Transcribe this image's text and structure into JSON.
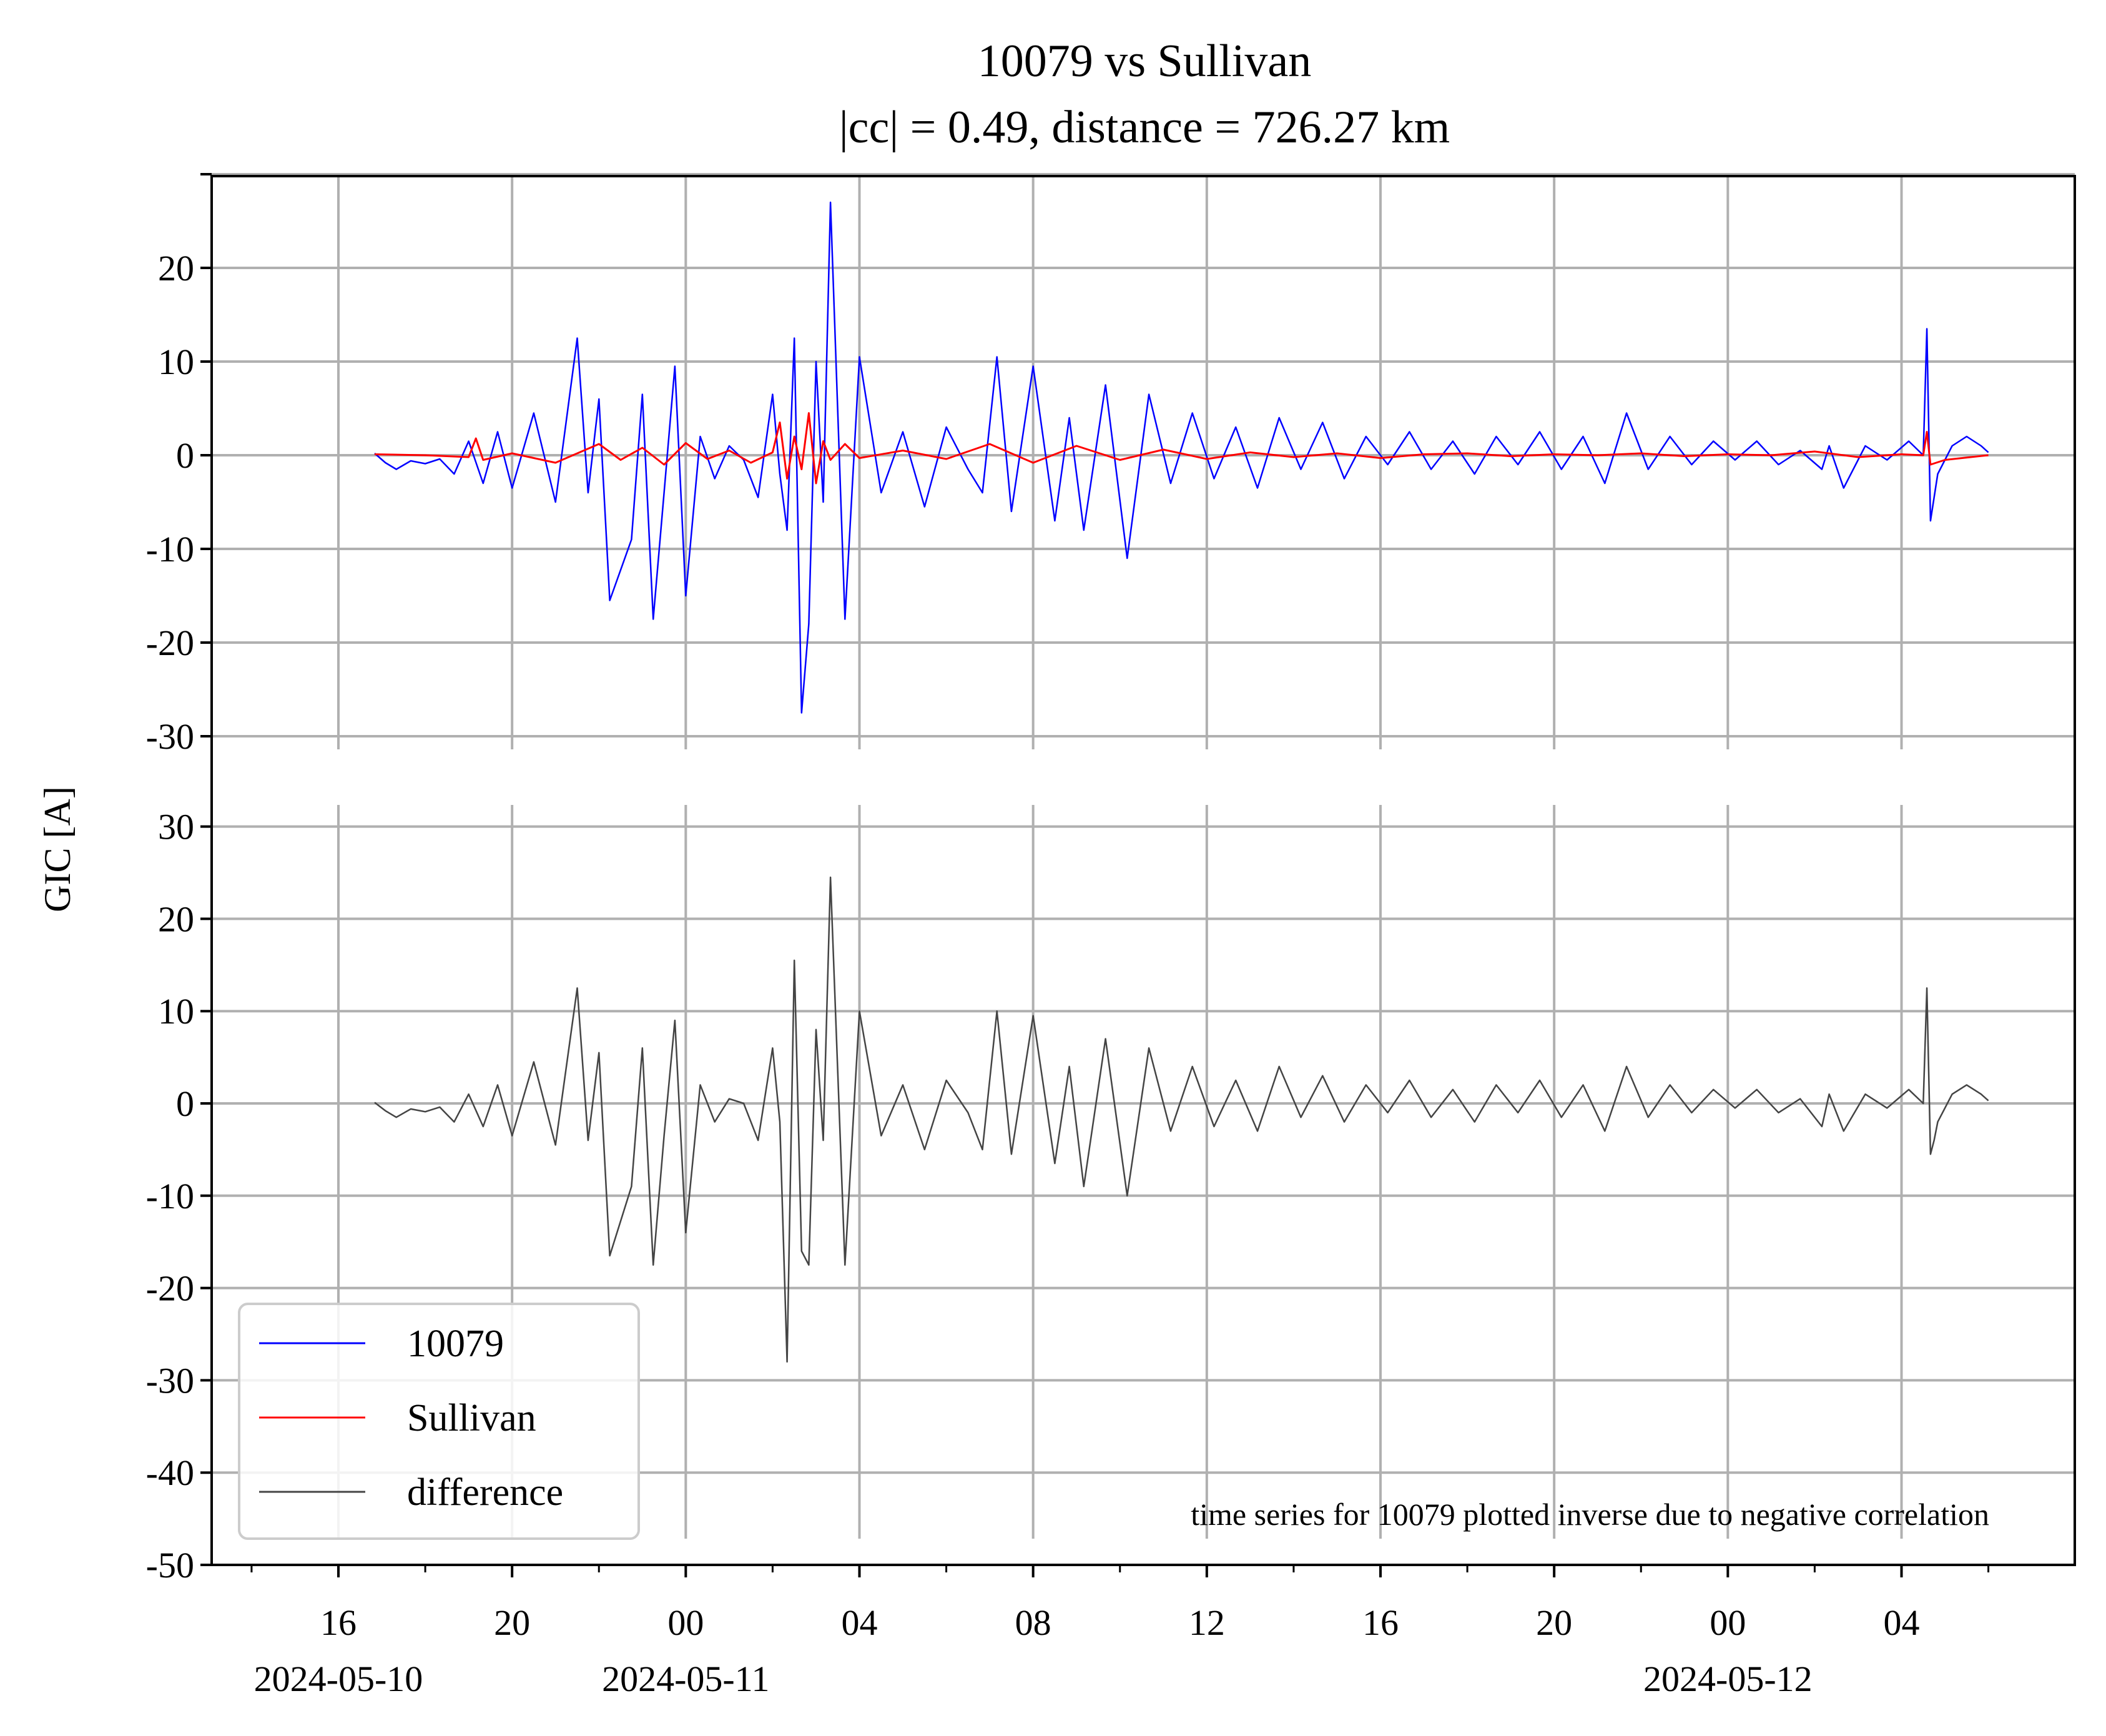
{
  "chart_data": {
    "type": "line",
    "title": "10079 vs Sullivan",
    "subtitle": "|cc| = 0.49, distance = 726.27 km",
    "ylabel": "GIC [A]",
    "xlabel": "",
    "x_range": [
      "2024-05-10 14:30",
      "2024-05-12 07:30"
    ],
    "x_ticks": [
      {
        "time": "2024-05-10 16:00",
        "label": "16",
        "date_label": "2024-05-10"
      },
      {
        "time": "2024-05-10 20:00",
        "label": "20",
        "date_label": ""
      },
      {
        "time": "2024-05-11 00:00",
        "label": "00",
        "date_label": "2024-05-11"
      },
      {
        "time": "2024-05-11 04:00",
        "label": "04",
        "date_label": ""
      },
      {
        "time": "2024-05-11 08:00",
        "label": "08",
        "date_label": ""
      },
      {
        "time": "2024-05-11 12:00",
        "label": "12",
        "date_label": ""
      },
      {
        "time": "2024-05-11 16:00",
        "label": "16",
        "date_label": ""
      },
      {
        "time": "2024-05-11 20:00",
        "label": "20",
        "date_label": ""
      },
      {
        "time": "2024-05-12 00:00",
        "label": "00",
        "date_label": "2024-05-12"
      },
      {
        "time": "2024-05-12 04:00",
        "label": "04",
        "date_label": ""
      }
    ],
    "grid": true,
    "panels": [
      {
        "name": "top",
        "ylim": [
          -30,
          30
        ],
        "yticks": [
          30,
          20,
          10,
          0,
          -10,
          -20,
          -30
        ],
        "ytick_labels": [
          "",
          "20",
          "10",
          "0",
          "-10",
          "-20",
          "-30"
        ],
        "series": [
          {
            "name": "10079",
            "color": "#0000ff",
            "x": [
              "2024-05-10 16:50",
              "2024-05-10 17:05",
              "2024-05-10 17:20",
              "2024-05-10 17:40",
              "2024-05-10 18:00",
              "2024-05-10 18:20",
              "2024-05-10 18:40",
              "2024-05-10 19:00",
              "2024-05-10 19:20",
              "2024-05-10 19:40",
              "2024-05-10 20:00",
              "2024-05-10 20:30",
              "2024-05-10 21:00",
              "2024-05-10 21:30",
              "2024-05-10 21:45",
              "2024-05-10 22:00",
              "2024-05-10 22:15",
              "2024-05-10 22:45",
              "2024-05-10 23:00",
              "2024-05-10 23:15",
              "2024-05-10 23:30",
              "2024-05-10 23:45",
              "2024-05-11 00:00",
              "2024-05-11 00:20",
              "2024-05-11 00:40",
              "2024-05-11 01:00",
              "2024-05-11 01:20",
              "2024-05-11 01:40",
              "2024-05-11 02:00",
              "2024-05-11 02:10",
              "2024-05-11 02:20",
              "2024-05-11 02:30",
              "2024-05-11 02:40",
              "2024-05-11 02:50",
              "2024-05-11 03:00",
              "2024-05-11 03:10",
              "2024-05-11 03:20",
              "2024-05-11 03:40",
              "2024-05-11 04:00",
              "2024-05-11 04:30",
              "2024-05-11 05:00",
              "2024-05-11 05:30",
              "2024-05-11 06:00",
              "2024-05-11 06:30",
              "2024-05-11 06:50",
              "2024-05-11 07:10",
              "2024-05-11 07:30",
              "2024-05-11 08:00",
              "2024-05-11 08:30",
              "2024-05-11 08:50",
              "2024-05-11 09:10",
              "2024-05-11 09:40",
              "2024-05-11 10:10",
              "2024-05-11 10:40",
              "2024-05-11 11:10",
              "2024-05-11 11:40",
              "2024-05-11 12:10",
              "2024-05-11 12:40",
              "2024-05-11 13:10",
              "2024-05-11 13:40",
              "2024-05-11 14:10",
              "2024-05-11 14:40",
              "2024-05-11 15:10",
              "2024-05-11 15:40",
              "2024-05-11 16:10",
              "2024-05-11 16:40",
              "2024-05-11 17:10",
              "2024-05-11 17:40",
              "2024-05-11 18:10",
              "2024-05-11 18:40",
              "2024-05-11 19:10",
              "2024-05-11 19:40",
              "2024-05-11 20:10",
              "2024-05-11 20:40",
              "2024-05-11 21:10",
              "2024-05-11 21:40",
              "2024-05-11 22:10",
              "2024-05-11 22:40",
              "2024-05-11 23:10",
              "2024-05-11 23:40",
              "2024-05-12 00:10",
              "2024-05-12 00:40",
              "2024-05-12 01:10",
              "2024-05-12 01:40",
              "2024-05-12 02:10",
              "2024-05-12 02:20",
              "2024-05-12 02:40",
              "2024-05-12 03:10",
              "2024-05-12 03:40",
              "2024-05-12 04:10",
              "2024-05-12 04:30",
              "2024-05-12 04:35",
              "2024-05-12 04:40",
              "2024-05-12 04:45",
              "2024-05-12 04:50",
              "2024-05-12 05:10",
              "2024-05-12 05:30",
              "2024-05-12 05:50",
              "2024-05-12 06:00"
            ],
            "values": [
              0.2,
              -0.8,
              -1.5,
              -0.6,
              -0.9,
              -0.4,
              -2.0,
              1.5,
              -3.0,
              2.5,
              -3.5,
              4.5,
              -5.0,
              12.5,
              -4.0,
              6.0,
              -15.5,
              -9.0,
              6.5,
              -17.5,
              -4.0,
              9.5,
              -15.0,
              2.0,
              -2.5,
              1.0,
              -0.5,
              -4.5,
              6.5,
              -2.0,
              -8.0,
              12.5,
              -27.5,
              -18.0,
              10.0,
              -5.0,
              27.0,
              -17.5,
              10.5,
              -4.0,
              2.5,
              -5.5,
              3.0,
              -1.5,
              -4.0,
              10.5,
              -6.0,
              9.5,
              -7.0,
              4.0,
              -8.0,
              7.5,
              -11.0,
              6.5,
              -3.0,
              4.5,
              -2.5,
              3.0,
              -3.5,
              4.0,
              -1.5,
              3.5,
              -2.5,
              2.0,
              -1.0,
              2.5,
              -1.5,
              1.5,
              -2.0,
              2.0,
              -1.0,
              2.5,
              -1.5,
              2.0,
              -3.0,
              4.5,
              -1.5,
              2.0,
              -1.0,
              1.5,
              -0.5,
              1.5,
              -1.0,
              0.5,
              -1.5,
              1.0,
              -3.5,
              1.0,
              -0.5,
              1.5,
              0.0,
              13.5,
              -7.0,
              -4.5,
              -2.0,
              1.0,
              2.0,
              1.0,
              0.3
            ]
          },
          {
            "name": "Sullivan",
            "color": "#ff0000",
            "x": [
              "2024-05-10 16:50",
              "2024-05-10 18:00",
              "2024-05-10 19:00",
              "2024-05-10 19:10",
              "2024-05-10 19:20",
              "2024-05-10 20:00",
              "2024-05-10 21:00",
              "2024-05-10 22:00",
              "2024-05-10 22:30",
              "2024-05-10 23:00",
              "2024-05-10 23:30",
              "2024-05-11 00:00",
              "2024-05-11 00:30",
              "2024-05-11 01:00",
              "2024-05-11 01:30",
              "2024-05-11 02:00",
              "2024-05-11 02:10",
              "2024-05-11 02:20",
              "2024-05-11 02:30",
              "2024-05-11 02:40",
              "2024-05-11 02:50",
              "2024-05-11 03:00",
              "2024-05-11 03:10",
              "2024-05-11 03:20",
              "2024-05-11 03:40",
              "2024-05-11 04:00",
              "2024-05-11 05:00",
              "2024-05-11 06:00",
              "2024-05-11 07:00",
              "2024-05-11 08:00",
              "2024-05-11 09:00",
              "2024-05-11 10:00",
              "2024-05-11 11:00",
              "2024-05-11 12:00",
              "2024-05-11 13:00",
              "2024-05-11 14:00",
              "2024-05-11 15:00",
              "2024-05-11 16:00",
              "2024-05-11 17:00",
              "2024-05-11 18:00",
              "2024-05-11 19:00",
              "2024-05-11 20:00",
              "2024-05-11 21:00",
              "2024-05-11 22:00",
              "2024-05-11 23:00",
              "2024-05-12 00:00",
              "2024-05-12 01:00",
              "2024-05-12 02:00",
              "2024-05-12 03:00",
              "2024-05-12 04:00",
              "2024-05-12 04:30",
              "2024-05-12 04:35",
              "2024-05-12 04:40",
              "2024-05-12 05:00",
              "2024-05-12 06:00"
            ],
            "values": [
              0.1,
              0.0,
              -0.2,
              1.8,
              -0.5,
              0.2,
              -0.8,
              1.2,
              -0.5,
              0.8,
              -1.0,
              1.3,
              -0.4,
              0.5,
              -0.8,
              0.3,
              3.5,
              -2.5,
              2.0,
              -1.5,
              4.5,
              -3.0,
              1.5,
              -0.5,
              1.2,
              -0.3,
              0.5,
              -0.4,
              1.2,
              -0.8,
              1.0,
              -0.5,
              0.6,
              -0.4,
              0.3,
              -0.2,
              0.2,
              -0.3,
              0.1,
              0.2,
              -0.1,
              0.1,
              0.0,
              0.2,
              -0.1,
              0.1,
              0.0,
              0.4,
              -0.2,
              0.1,
              0.0,
              2.5,
              -1.0,
              -0.5,
              0.0
            ]
          }
        ]
      },
      {
        "name": "bottom",
        "ylim": [
          -50,
          30
        ],
        "yticks": [
          30,
          20,
          10,
          0,
          -10,
          -20,
          -30,
          -40,
          -50
        ],
        "ytick_labels": [
          "30",
          "20",
          "10",
          "0",
          "-10",
          "-20",
          "-30",
          "-40",
          "-50"
        ],
        "series": [
          {
            "name": "difference",
            "color": "#444444",
            "x": [
              "2024-05-10 16:50",
              "2024-05-10 17:05",
              "2024-05-10 17:20",
              "2024-05-10 17:40",
              "2024-05-10 18:00",
              "2024-05-10 18:20",
              "2024-05-10 18:40",
              "2024-05-10 19:00",
              "2024-05-10 19:20",
              "2024-05-10 19:40",
              "2024-05-10 20:00",
              "2024-05-10 20:30",
              "2024-05-10 21:00",
              "2024-05-10 21:30",
              "2024-05-10 21:45",
              "2024-05-10 22:00",
              "2024-05-10 22:15",
              "2024-05-10 22:45",
              "2024-05-10 23:00",
              "2024-05-10 23:15",
              "2024-05-10 23:30",
              "2024-05-10 23:45",
              "2024-05-11 00:00",
              "2024-05-11 00:20",
              "2024-05-11 00:40",
              "2024-05-11 01:00",
              "2024-05-11 01:20",
              "2024-05-11 01:40",
              "2024-05-11 02:00",
              "2024-05-11 02:10",
              "2024-05-11 02:20",
              "2024-05-11 02:30",
              "2024-05-11 02:40",
              "2024-05-11 02:50",
              "2024-05-11 03:00",
              "2024-05-11 03:10",
              "2024-05-11 03:20",
              "2024-05-11 03:40",
              "2024-05-11 04:00",
              "2024-05-11 04:30",
              "2024-05-11 05:00",
              "2024-05-11 05:30",
              "2024-05-11 06:00",
              "2024-05-11 06:30",
              "2024-05-11 06:50",
              "2024-05-11 07:10",
              "2024-05-11 07:30",
              "2024-05-11 08:00",
              "2024-05-11 08:30",
              "2024-05-11 08:50",
              "2024-05-11 09:10",
              "2024-05-11 09:40",
              "2024-05-11 10:10",
              "2024-05-11 10:40",
              "2024-05-11 11:10",
              "2024-05-11 11:40",
              "2024-05-11 12:10",
              "2024-05-11 12:40",
              "2024-05-11 13:10",
              "2024-05-11 13:40",
              "2024-05-11 14:10",
              "2024-05-11 14:40",
              "2024-05-11 15:10",
              "2024-05-11 15:40",
              "2024-05-11 16:10",
              "2024-05-11 16:40",
              "2024-05-11 17:10",
              "2024-05-11 17:40",
              "2024-05-11 18:10",
              "2024-05-11 18:40",
              "2024-05-11 19:10",
              "2024-05-11 19:40",
              "2024-05-11 20:10",
              "2024-05-11 20:40",
              "2024-05-11 21:10",
              "2024-05-11 21:40",
              "2024-05-11 22:10",
              "2024-05-11 22:40",
              "2024-05-11 23:10",
              "2024-05-11 23:40",
              "2024-05-12 00:10",
              "2024-05-12 00:40",
              "2024-05-12 01:10",
              "2024-05-12 01:40",
              "2024-05-12 02:10",
              "2024-05-12 02:20",
              "2024-05-12 02:40",
              "2024-05-12 03:10",
              "2024-05-12 03:40",
              "2024-05-12 04:10",
              "2024-05-12 04:30",
              "2024-05-12 04:35",
              "2024-05-12 04:40",
              "2024-05-12 04:45",
              "2024-05-12 04:50",
              "2024-05-12 05:10",
              "2024-05-12 05:30",
              "2024-05-12 05:50",
              "2024-05-12 06:00"
            ],
            "values": [
              0.1,
              -0.8,
              -1.5,
              -0.6,
              -0.9,
              -0.4,
              -2.0,
              1.0,
              -2.5,
              2.0,
              -3.5,
              4.5,
              -4.5,
              12.5,
              -4.0,
              5.5,
              -16.5,
              -9.0,
              6.0,
              -17.5,
              -3.5,
              9.0,
              -14.0,
              2.0,
              -2.0,
              0.5,
              0.0,
              -4.0,
              6.0,
              -2.0,
              -28.0,
              15.5,
              -16.0,
              -17.5,
              8.0,
              -4.0,
              24.5,
              -17.5,
              10.0,
              -3.5,
              2.0,
              -5.0,
              2.5,
              -1.0,
              -5.0,
              10.0,
              -5.5,
              9.5,
              -6.5,
              4.0,
              -9.0,
              7.0,
              -10.0,
              6.0,
              -3.0,
              4.0,
              -2.5,
              2.5,
              -3.0,
              4.0,
              -1.5,
              3.0,
              -2.0,
              2.0,
              -1.0,
              2.5,
              -1.5,
              1.5,
              -2.0,
              2.0,
              -1.0,
              2.5,
              -1.5,
              2.0,
              -3.0,
              4.0,
              -1.5,
              2.0,
              -1.0,
              1.5,
              -0.5,
              1.5,
              -1.0,
              0.5,
              -2.5,
              1.0,
              -3.0,
              1.0,
              -0.5,
              1.5,
              0.0,
              12.5,
              -5.5,
              -4.0,
              -2.0,
              1.0,
              2.0,
              1.0,
              0.3
            ]
          }
        ]
      }
    ],
    "legend": {
      "placement": "lower-left",
      "entries": [
        {
          "label": "10079",
          "color": "#0000ff"
        },
        {
          "label": "Sullivan",
          "color": "#ff0000"
        },
        {
          "label": "difference",
          "color": "#444444"
        }
      ]
    },
    "annotation": "time series for 10079 plotted inverse due to negative correlation"
  }
}
